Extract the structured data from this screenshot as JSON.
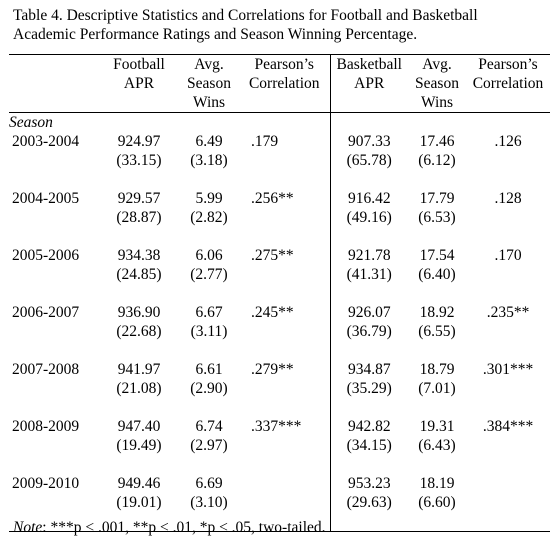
{
  "caption": {
    "line1": "Table 4. Descriptive Statistics and Correlations for Football and Basketball",
    "line2": "Academic Performance Ratings and Season Winning Percentage."
  },
  "headers": {
    "football_apr": [
      "Football",
      "APR"
    ],
    "football_wins": [
      "Avg.",
      "Season",
      "Wins"
    ],
    "football_corr": [
      "Pearson’s",
      "Correlation"
    ],
    "basketball_apr": [
      "Basketball",
      "APR"
    ],
    "basketball_wins": [
      "Avg.",
      "Season",
      "Wins"
    ],
    "basketball_corr": [
      "Pearson’s",
      "Correlation"
    ]
  },
  "season_label": "Season",
  "rows": [
    {
      "season": "2003-2004",
      "fb_apr": "924.97",
      "fb_apr_sd": "(33.15)",
      "fb_wins": "6.49",
      "fb_wins_sd": "(3.18)",
      "fb_corr": ".179",
      "bb_apr": "907.33",
      "bb_apr_sd": "(65.78)",
      "bb_wins": "17.46",
      "bb_wins_sd": "(6.12)",
      "bb_corr": ".126"
    },
    {
      "season": "2004-2005",
      "fb_apr": "929.57",
      "fb_apr_sd": "(28.87)",
      "fb_wins": "5.99",
      "fb_wins_sd": "(2.82)",
      "fb_corr": ".256**",
      "bb_apr": "916.42",
      "bb_apr_sd": "(49.16)",
      "bb_wins": "17.79",
      "bb_wins_sd": "(6.53)",
      "bb_corr": ".128"
    },
    {
      "season": "2005-2006",
      "fb_apr": "934.38",
      "fb_apr_sd": "(24.85)",
      "fb_wins": "6.06",
      "fb_wins_sd": "(2.77)",
      "fb_corr": ".275**",
      "bb_apr": "921.78",
      "bb_apr_sd": "(41.31)",
      "bb_wins": "17.54",
      "bb_wins_sd": "(6.40)",
      "bb_corr": ".170"
    },
    {
      "season": "2006-2007",
      "fb_apr": "936.90",
      "fb_apr_sd": "(22.68)",
      "fb_wins": "6.67",
      "fb_wins_sd": "(3.11)",
      "fb_corr": ".245**",
      "bb_apr": "926.07",
      "bb_apr_sd": "(36.79)",
      "bb_wins": "18.92",
      "bb_wins_sd": "(6.55)",
      "bb_corr": ".235**"
    },
    {
      "season": "2007-2008",
      "fb_apr": "941.97",
      "fb_apr_sd": "(21.08)",
      "fb_wins": "6.61",
      "fb_wins_sd": "(2.90)",
      "fb_corr": ".279**",
      "bb_apr": "934.87",
      "bb_apr_sd": "(35.29)",
      "bb_wins": "18.79",
      "bb_wins_sd": "(7.01)",
      "bb_corr": ".301***"
    },
    {
      "season": "2008-2009",
      "fb_apr": "947.40",
      "fb_apr_sd": "(19.49)",
      "fb_wins": "6.74",
      "fb_wins_sd": "(2.97)",
      "fb_corr": ".337***",
      "bb_apr": "942.82",
      "bb_apr_sd": "(34.15)",
      "bb_wins": "19.31",
      "bb_wins_sd": "(6.43)",
      "bb_corr": ".384***"
    },
    {
      "season": "2009-2010",
      "fb_apr": "949.46",
      "fb_apr_sd": "(19.01)",
      "fb_wins": "6.69",
      "fb_wins_sd": "(3.10)",
      "fb_corr": "",
      "bb_apr": "953.23",
      "bb_apr_sd": "(29.63)",
      "bb_wins": "18.19",
      "bb_wins_sd": "(6.60)",
      "bb_corr": ""
    }
  ],
  "note": {
    "label": "Note",
    "text": ": ***p < .001, **p < .01, *p < .05, two-tailed."
  }
}
